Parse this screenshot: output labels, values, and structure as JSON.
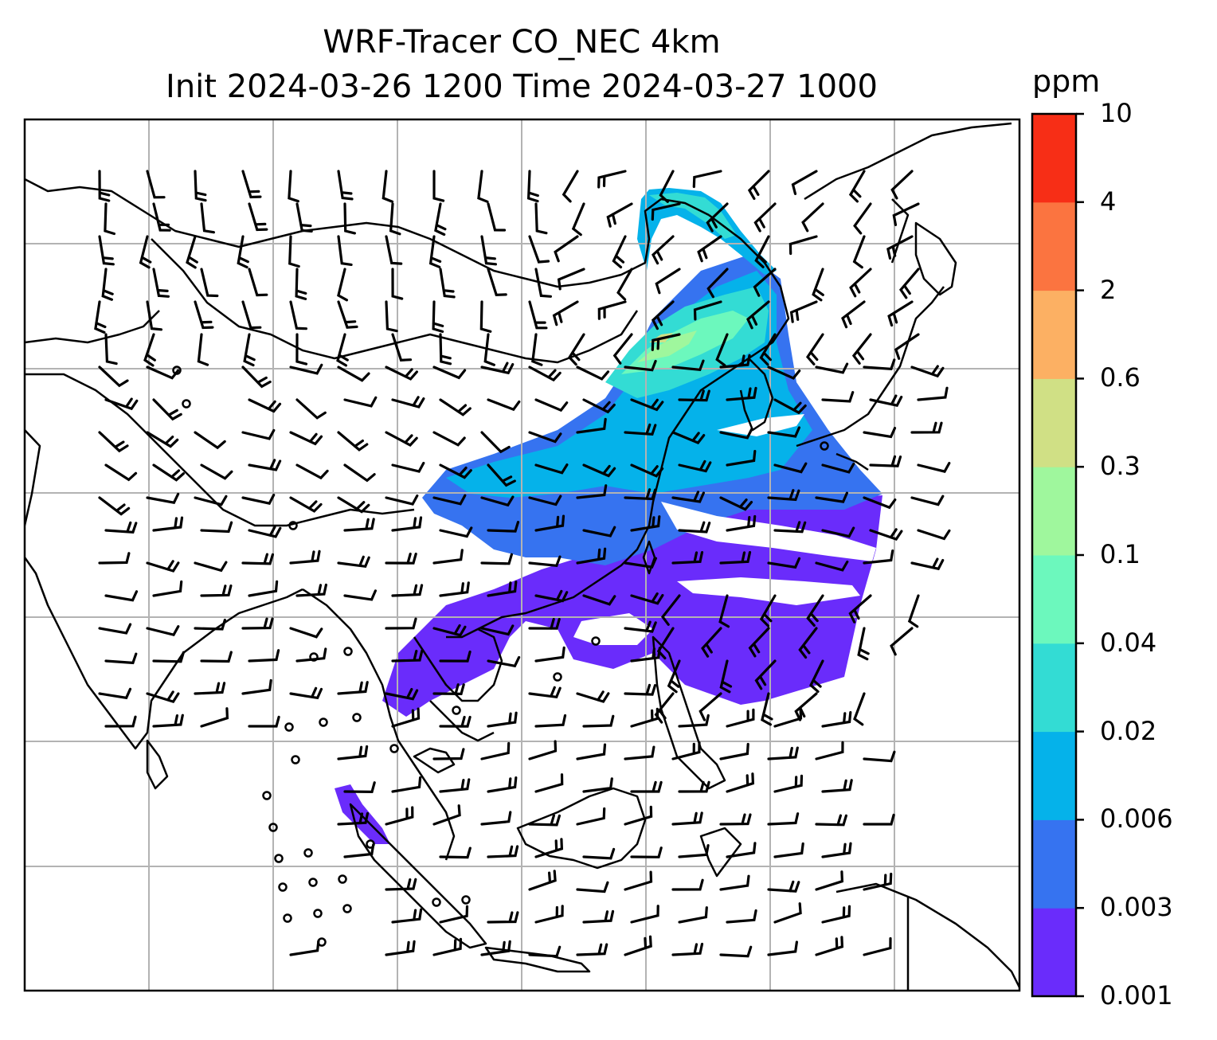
{
  "title_line1": "WRF-Tracer CO_NEC 4km",
  "title_line2": "Init 2024-03-26 1200 Time 2024-03-27 1000",
  "colorbar": {
    "unit": "ppm",
    "levels": [
      "0.001",
      "0.003",
      "0.006",
      "0.02",
      "0.04",
      "0.1",
      "0.3",
      "0.6",
      "2",
      "4",
      "10"
    ],
    "colors": [
      "#6a2cfb",
      "#3673f0",
      "#05b2ea",
      "#33dcd4",
      "#6cf8bd",
      "#9ff79d",
      "#d0e085",
      "#fcb063",
      "#fb7440",
      "#f72e16"
    ]
  },
  "map": {
    "background": "#ffffff",
    "gridline_color": "#b3b3b3",
    "coastline_color": "#000000",
    "wind_barb_color": "#000000"
  }
}
